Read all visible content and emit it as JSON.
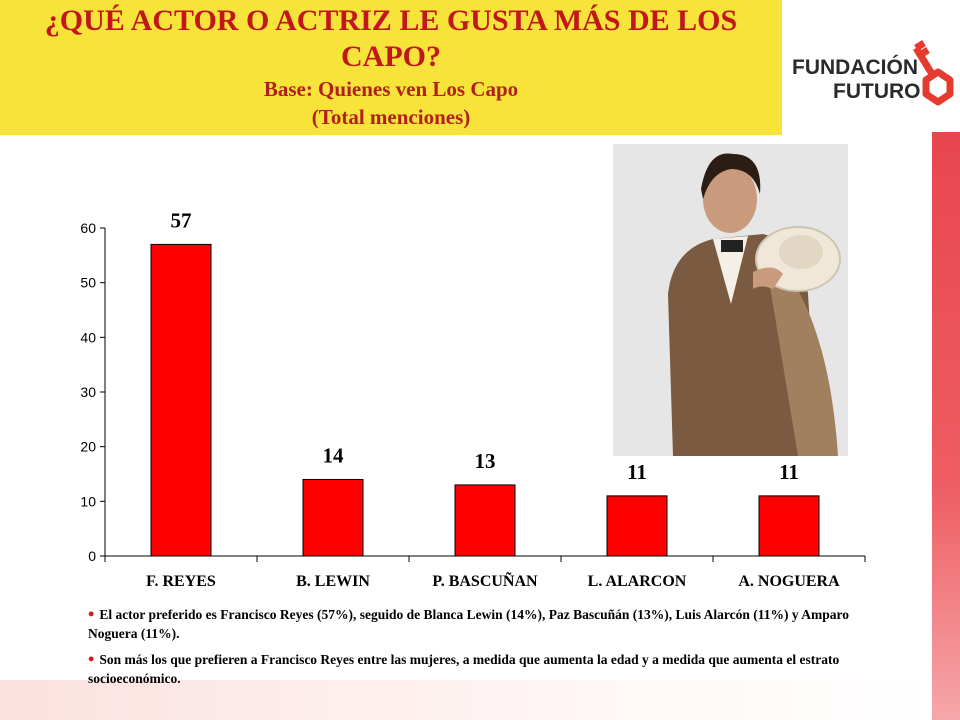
{
  "title": {
    "main": "¿QUÉ ACTOR O ACTRIZ LE GUSTA MÁS DE LOS CAPO?",
    "sub1": "Base: Quienes ven Los Capo",
    "sub2": "(Total menciones)"
  },
  "logo": {
    "line1": "FUNDACIÓN",
    "line2": "FUTURO"
  },
  "colors": {
    "title_bg": "#f7e33a",
    "title_text": "#c01818",
    "bar": "#ff0000",
    "accent": "#e8464e"
  },
  "photo": {
    "icon": "actor-photo"
  },
  "chart_data": {
    "type": "bar",
    "categories": [
      "F. REYES",
      "B. LEWIN",
      "P. BASCUÑAN",
      "L. ALARCON",
      "A. NOGUERA"
    ],
    "values": [
      57,
      14,
      13,
      11,
      11
    ],
    "data_labels": [
      "57",
      "14",
      "13",
      "11",
      "11"
    ],
    "yticks": [
      "0",
      "10",
      "20",
      "30",
      "40",
      "50",
      "60"
    ],
    "ylim": [
      0,
      60
    ],
    "grid": false,
    "legend": "none"
  },
  "bullets": [
    "El actor preferido es Francisco Reyes (57%), seguido de Blanca Lewin (14%), Paz Bascuñán (13%), Luis Alarcón (11%) y Amparo Noguera (11%).",
    "Son más los que prefieren a Francisco Reyes entre las mujeres, a medida que aumenta la edad y a medida que aumenta el estrato socioeconómico."
  ]
}
